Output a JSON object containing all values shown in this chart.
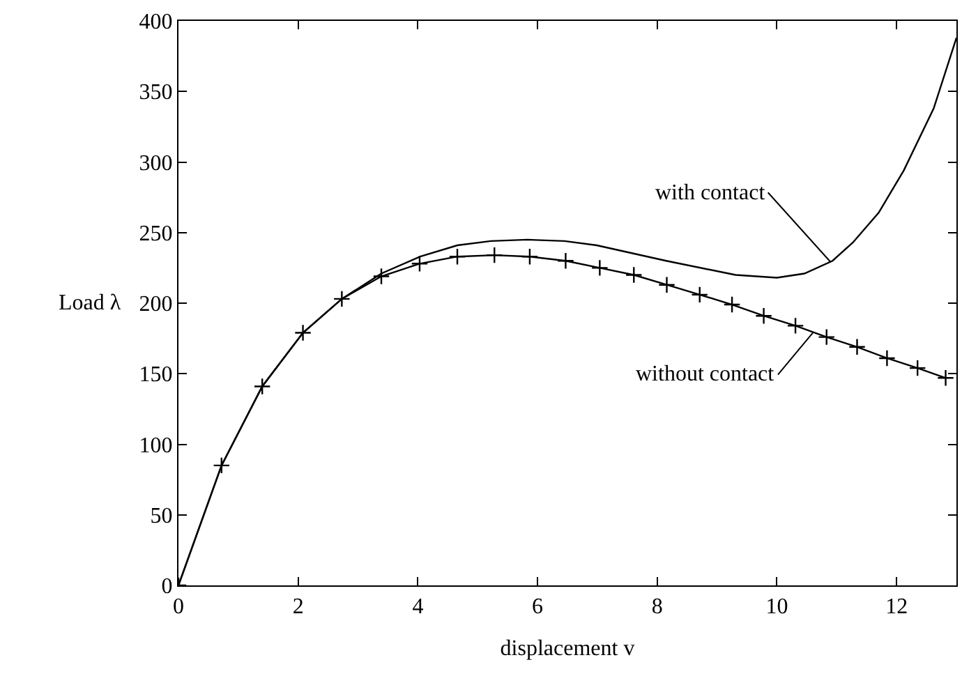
{
  "chart_data": {
    "type": "line",
    "xlabel": "displacement v",
    "ylabel": "Load λ",
    "xlim": [
      0,
      13
    ],
    "xticks": [
      0,
      2,
      4,
      6,
      8,
      10,
      12
    ],
    "ylim": [
      0,
      400
    ],
    "yticks": [
      0,
      50,
      100,
      150,
      200,
      250,
      300,
      350,
      400
    ],
    "line_style": "solid",
    "series": [
      {
        "color": "#000000",
        "marker": "none",
        "x": [
          0,
          0.72,
          1.4,
          2.08,
          2.73,
          3.39,
          4.04,
          4.66,
          5.22,
          5.83,
          6.45,
          6.99,
          8.15,
          9.31,
          10.0,
          10.46,
          10.93,
          11.27,
          11.7,
          12.12,
          12.62,
          13.0
        ],
        "values": [
          0,
          85,
          141,
          179,
          203,
          221,
          233,
          241,
          244,
          245,
          244,
          241,
          230,
          220,
          218,
          221,
          230,
          243,
          264,
          294,
          338,
          388
        ]
      },
      {
        "color": "#000000",
        "marker": "cross",
        "x": [
          0,
          0.72,
          1.4,
          2.08,
          2.73,
          3.39,
          4.03,
          4.66,
          5.28,
          5.87,
          6.47,
          7.04,
          7.61,
          8.16,
          8.71,
          9.25,
          9.78,
          10.31,
          10.83,
          11.34,
          11.84,
          12.35,
          12.82
        ],
        "values": [
          0,
          85,
          141,
          179,
          203,
          219,
          228,
          233,
          234,
          233,
          230,
          225,
          220,
          213,
          206,
          199,
          191,
          184,
          176,
          169,
          161,
          154,
          147
        ]
      }
    ],
    "annotations": [
      {
        "text": "with contact",
        "x": 10.9,
        "y": 229
      },
      {
        "text": "without contact",
        "x": 10.6,
        "y": 179
      }
    ]
  }
}
